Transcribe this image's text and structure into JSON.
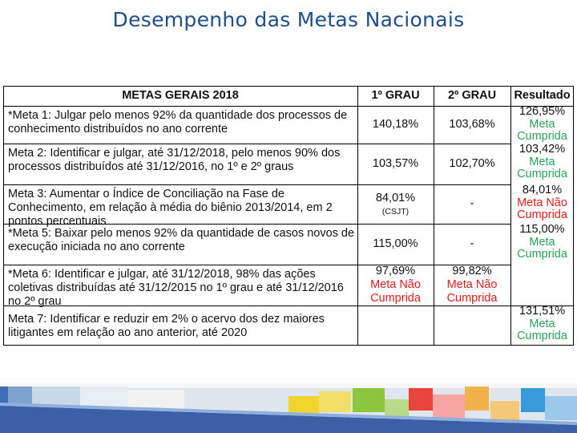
{
  "slide": {
    "title": "Desempenho das Metas Nacionais"
  },
  "table": {
    "headers": {
      "meta": "METAS GERAIS 2018",
      "g1": "1º GRAU",
      "g2": "2º GRAU",
      "res": "Resultado"
    },
    "rows": [
      {
        "meta": "*Meta 1: Julgar pelo menos 92% da quantidade dos processos de conhecimento distribuídos no ano corrente",
        "g1": "140,18%",
        "g1_note": "",
        "g1_status": "",
        "g2": "103,68%",
        "g2_status": "",
        "res_value": "126,95%",
        "res_status": "Meta Cumprida"
      },
      {
        "meta": "Meta 2: Identificar e julgar, até 31/12/2018, pelo menos 90% dos processos distribuídos até 31/12/2016, no 1º e 2º graus",
        "g1": "103,57%",
        "g1_note": "",
        "g1_status": "",
        "g2": "102,70%",
        "g2_status": "",
        "res_value": "103,42%",
        "res_status": "Meta Cumprida"
      },
      {
        "meta": "Meta 3: Aumentar o Índice de Conciliação na Fase de Conhecimento, em relação à média do biênio 2013/2014, em 2 pontos percentuais",
        "g1": "84,01%",
        "g1_note": "(CSJT)",
        "g1_status": "",
        "g2": "-",
        "g2_status": "",
        "res_value": "84,01%",
        "res_status": "Meta Não Cumprida"
      },
      {
        "meta": "*Meta 5: Baixar pelo menos 92% da quantidade de casos novos de execução iniciada no ano corrente",
        "g1": "115,00%",
        "g1_note": "",
        "g1_status": "",
        "g2": "-",
        "g2_status": "",
        "res_value": "115,00%",
        "res_status": "Meta Cumprida"
      },
      {
        "meta": "*Meta 6: Identificar e julgar, até 31/12/2018, 98% das ações coletivas distribuídas até 31/12/2015 no 1º grau e até 31/12/2016 no 2º grau",
        "g1": "97,69%",
        "g1_note": "",
        "g1_status": "Meta Não Cumprida",
        "g2": "99,82%",
        "g2_status": "Meta Não Cumprida",
        "res_value": "",
        "res_status": ""
      },
      {
        "meta": "Meta 7: Identificar e reduzir em 2% o acervo dos dez maiores litigantes em relação ao ano anterior, até 2020",
        "g1": "",
        "g1_note": "",
        "g1_status": "",
        "g2": "",
        "g2_status": "",
        "res_value": "131,51%",
        "res_status": "Meta Cumprida"
      }
    ]
  },
  "colors": {
    "title": "#1f4e8c",
    "met": "#2aa05a",
    "not_met": "#e01b1b"
  }
}
